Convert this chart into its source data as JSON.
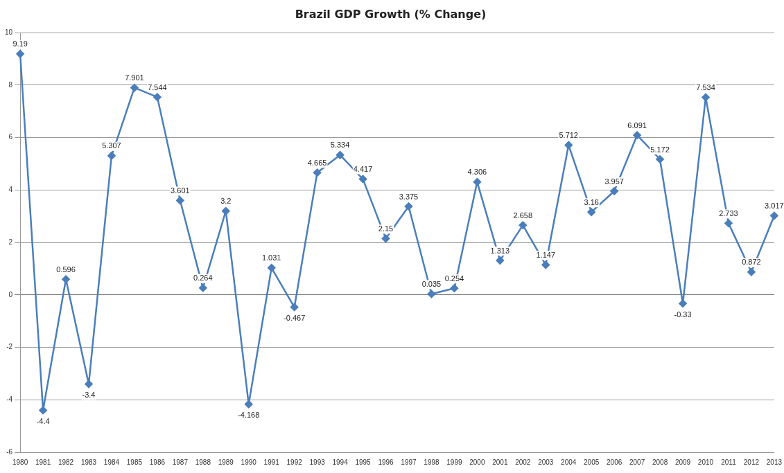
{
  "chart_data": {
    "type": "line",
    "title": "Brazil GDP Growth (% Change)",
    "categories": [
      "1980",
      "1981",
      "1982",
      "1983",
      "1984",
      "1985",
      "1986",
      "1987",
      "1988",
      "1989",
      "1990",
      "1991",
      "1992",
      "1993",
      "1994",
      "1995",
      "1996",
      "1997",
      "1998",
      "1999",
      "2000",
      "2001",
      "2002",
      "2003",
      "2004",
      "2005",
      "2006",
      "2007",
      "2008",
      "2009",
      "2010",
      "2011",
      "2012",
      "2013"
    ],
    "series": [
      {
        "color": "#4a7ebb",
        "values": [
          9.19,
          -4.4,
          0.596,
          -3.4,
          5.307,
          7.901,
          7.544,
          3.601,
          0.264,
          3.2,
          -4.168,
          1.031,
          -0.467,
          4.665,
          5.334,
          4.417,
          2.15,
          3.375,
          0.035,
          0.254,
          4.306,
          1.313,
          2.658,
          1.147,
          5.712,
          3.16,
          3.957,
          6.091,
          5.172,
          -0.33,
          7.534,
          2.733,
          0.872,
          3.017
        ]
      }
    ],
    "ylim": [
      -6,
      10
    ],
    "yticks": [
      -6,
      -4,
      -2,
      0,
      2,
      4,
      6,
      8,
      10
    ],
    "grid": "y",
    "legend": false,
    "marker": "diamond",
    "line_style": "solid",
    "data_labels": true
  }
}
